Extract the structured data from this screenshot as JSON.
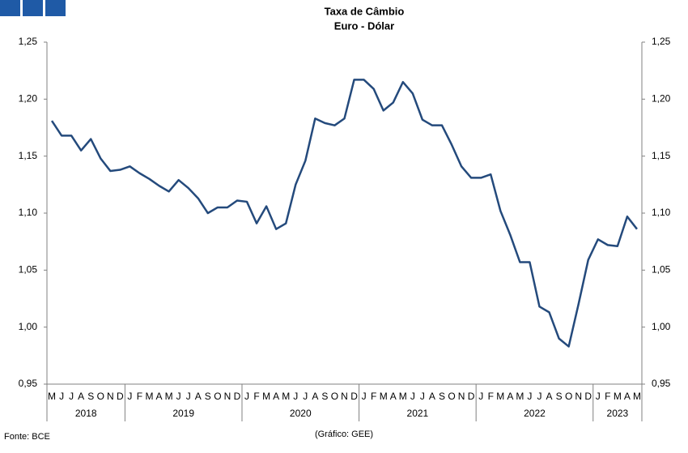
{
  "chart_data": {
    "type": "line",
    "title": "Taxa de Câmbio",
    "subtitle": "Euro - Dólar",
    "categories": [
      "M",
      "J",
      "J",
      "A",
      "S",
      "O",
      "N",
      "D",
      "J",
      "F",
      "M",
      "A",
      "M",
      "J",
      "J",
      "A",
      "S",
      "O",
      "N",
      "D",
      "J",
      "F",
      "M",
      "A",
      "M",
      "J",
      "J",
      "A",
      "S",
      "O",
      "N",
      "D",
      "J",
      "F",
      "M",
      "A",
      "M",
      "J",
      "J",
      "A",
      "S",
      "O",
      "N",
      "D",
      "J",
      "F",
      "M",
      "A",
      "M",
      "J",
      "J",
      "A",
      "S",
      "O",
      "N",
      "D",
      "J",
      "F",
      "M",
      "A",
      "M"
    ],
    "years": [
      "2018",
      "2019",
      "2020",
      "2021",
      "2022",
      "2023"
    ],
    "series": [
      {
        "name": "Euro - Dólar",
        "color": "#244a7c",
        "values": [
          1.181,
          1.168,
          1.168,
          1.155,
          1.165,
          1.148,
          1.137,
          1.138,
          1.141,
          1.135,
          1.13,
          1.124,
          1.119,
          1.129,
          1.122,
          1.113,
          1.1,
          1.105,
          1.105,
          1.111,
          1.11,
          1.091,
          1.106,
          1.086,
          1.091,
          1.125,
          1.146,
          1.183,
          1.179,
          1.177,
          1.183,
          1.217,
          1.217,
          1.209,
          1.19,
          1.197,
          1.215,
          1.205,
          1.182,
          1.177,
          1.177,
          1.16,
          1.141,
          1.131,
          1.131,
          1.134,
          1.102,
          1.081,
          1.057,
          1.057,
          1.018,
          1.013,
          0.99,
          0.983,
          1.02,
          1.059,
          1.077,
          1.072,
          1.071,
          1.097,
          1.086
        ]
      }
    ],
    "ylim": [
      0.95,
      1.25
    ],
    "yticks": [
      {
        "value": 0.95,
        "label": "0,95"
      },
      {
        "value": 1.0,
        "label": "1,00"
      },
      {
        "value": 1.05,
        "label": "1,05"
      },
      {
        "value": 1.1,
        "label": "1,10"
      },
      {
        "value": 1.15,
        "label": "1,15"
      },
      {
        "value": 1.2,
        "label": "1,20"
      },
      {
        "value": 1.25,
        "label": "1,25"
      }
    ],
    "y2lim": [
      0.95,
      1.25
    ],
    "y2ticks": [
      {
        "value": 0.95,
        "label": "0,95"
      },
      {
        "value": 1.0,
        "label": "1,00"
      },
      {
        "value": 1.05,
        "label": "1,05"
      },
      {
        "value": 1.1,
        "label": "1,10"
      },
      {
        "value": 1.15,
        "label": "1,15"
      },
      {
        "value": 1.2,
        "label": "1,20"
      },
      {
        "value": 1.25,
        "label": "1,25"
      }
    ],
    "grid": false,
    "source": "Fonte: BCE",
    "note": "(Gráfico: GEE)"
  }
}
